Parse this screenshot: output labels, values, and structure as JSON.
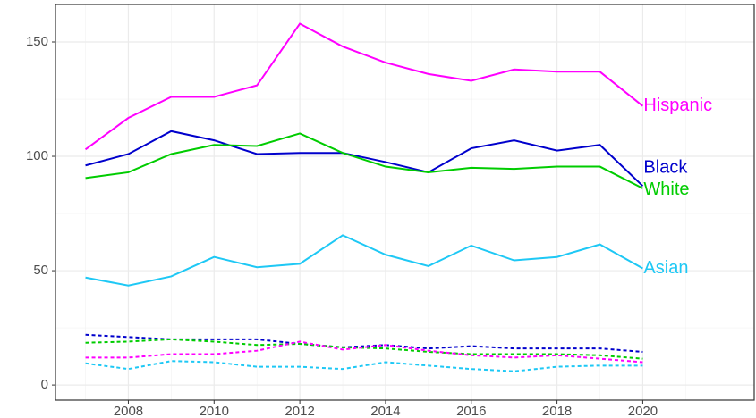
{
  "chart_data": {
    "type": "line",
    "x": [
      2007,
      2008,
      2009,
      2010,
      2011,
      2012,
      2013,
      2014,
      2015,
      2016,
      2017,
      2018,
      2019,
      2020
    ],
    "xlim": [
      2006.3,
      2022.6
    ],
    "xticks": [
      2008,
      2010,
      2012,
      2014,
      2016,
      2018,
      2020
    ],
    "ylim": [
      -6.6,
      166.4
    ],
    "yticks": [
      0,
      50,
      100,
      150
    ],
    "grid": true,
    "series": [
      {
        "name": "Hispanic",
        "color": "#ff00ff",
        "dash": false,
        "values": [
          103,
          116.8,
          126,
          126,
          131,
          158,
          148,
          141,
          136,
          133,
          138,
          137,
          137,
          122
        ]
      },
      {
        "name": "Black",
        "color": "#0000cc",
        "dash": false,
        "values": [
          96,
          101,
          111,
          107,
          101,
          101.5,
          101.5,
          97.5,
          93,
          103.5,
          107,
          102.5,
          105,
          87
        ]
      },
      {
        "name": "White",
        "color": "#00cc00",
        "dash": false,
        "values": [
          90.5,
          93,
          101,
          105,
          104.5,
          110,
          101.5,
          95.5,
          93,
          95,
          94.5,
          95.5,
          95.5,
          86
        ]
      },
      {
        "name": "Asian",
        "color": "#1ec8f5",
        "dash": false,
        "values": [
          47,
          43.5,
          47.5,
          56,
          51.5,
          53,
          65.5,
          57,
          52,
          61,
          54.5,
          56,
          61.5,
          51
        ]
      },
      {
        "color": "#0000cc",
        "dash": true,
        "values": [
          22,
          21,
          20,
          20,
          20,
          18,
          16.5,
          17.5,
          16,
          17,
          16,
          16,
          16,
          14.5
        ]
      },
      {
        "color": "#00cc00",
        "dash": true,
        "values": [
          18.5,
          19,
          20,
          19,
          17.5,
          18,
          16.5,
          16,
          14.5,
          13.5,
          13.5,
          13.5,
          13,
          11.5
        ]
      },
      {
        "color": "#ff00ff",
        "dash": true,
        "values": [
          12,
          12,
          13.5,
          13.5,
          15,
          19,
          15.5,
          17.5,
          15,
          13,
          12,
          13,
          11.5,
          10
        ]
      },
      {
        "color": "#1ec8f5",
        "dash": true,
        "values": [
          9.5,
          7,
          10.5,
          10,
          8,
          8,
          7,
          10,
          8.5,
          7,
          6,
          8,
          8.5,
          8.5
        ]
      }
    ]
  }
}
